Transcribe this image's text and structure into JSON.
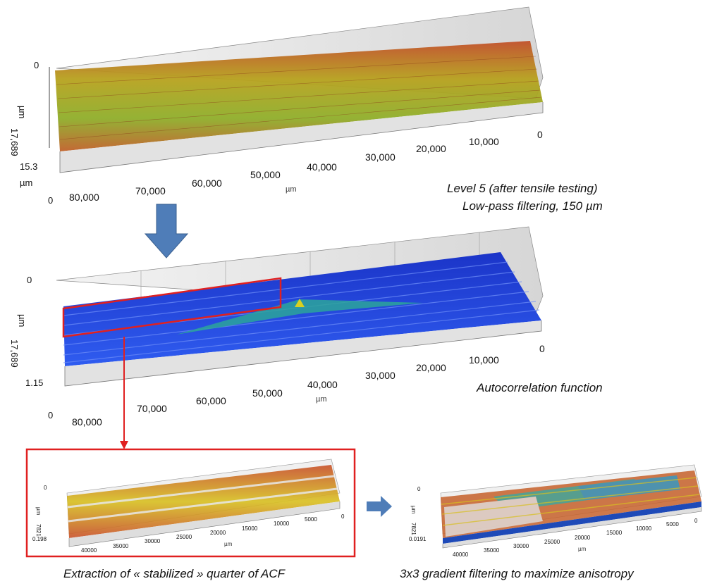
{
  "panels": [
    {
      "id": "top",
      "zlabels": {
        "zero": "0",
        "unit": "µm",
        "max": "17,689"
      },
      "ylabels": {
        "val": "15.3",
        "unit": "µm",
        "zero": "0"
      },
      "xticks": [
        "80,000",
        "70,000",
        "60,000",
        "50,000",
        "40,000",
        "30,000",
        "20,000",
        "10,000",
        "0"
      ],
      "xunit": "µm",
      "surface": "rough height map, green/orange/red",
      "caption1": "Level 5 (after  tensile testing)",
      "caption2": "Low-pass filtering, 150 µm"
    },
    {
      "id": "middle",
      "zlabels": {
        "zero": "0",
        "unit": "µm",
        "max": "17,689"
      },
      "ylabels": {
        "val": "1.15",
        "unit": "µm",
        "zero": "0"
      },
      "xticks": [
        "80,000",
        "70,000",
        "60,000",
        "50,000",
        "40,000",
        "30,000",
        "20,000",
        "10,000",
        "0"
      ],
      "xunit": "µm",
      "surface": "blue striated surface with central peak",
      "caption1": "Autocorrelation function"
    },
    {
      "id": "bottom-left",
      "zlabels": {
        "zero": "0",
        "unit": "µm",
        "max": "7821",
        "val": "0.198"
      },
      "xticks": [
        "40000",
        "35000",
        "30000",
        "25000",
        "20000",
        "15000",
        "10000",
        "5000",
        "0"
      ],
      "xunit": "µm",
      "caption1": "Extraction of « stabilized » quarter of ACF"
    },
    {
      "id": "bottom-right",
      "zlabels": {
        "zero": "0",
        "unit": "µm",
        "max": "7821",
        "val": "0.0191"
      },
      "xticks": [
        "40000",
        "35000",
        "30000",
        "25000",
        "20000",
        "15000",
        "10000",
        "5000",
        "0"
      ],
      "xunit": "µm",
      "caption1": "3x3 gradient filtering to maximize anisotropy"
    }
  ],
  "colors": {
    "arrow": "#4f7db8",
    "highlight": "#e02020",
    "rough": "#b9a020",
    "acf": "#1f3fd8"
  }
}
